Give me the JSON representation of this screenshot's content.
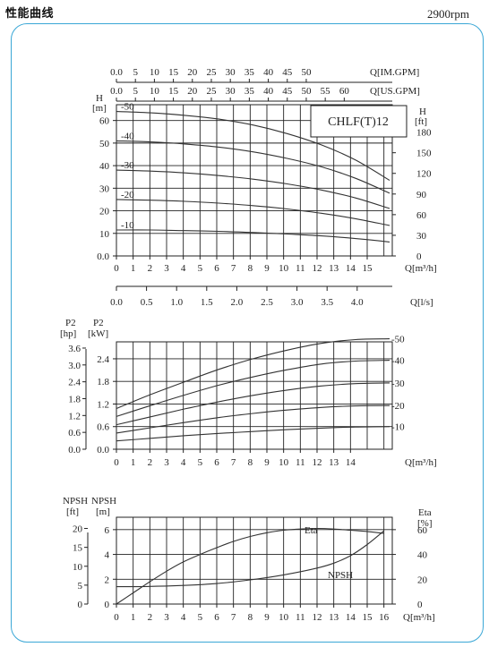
{
  "page": {
    "heading": "性能曲线",
    "speed": "2900rpm"
  },
  "colors": {
    "frame": "#3aa7d6",
    "ink": "#222222",
    "curve": "#333333"
  },
  "chart_data": [
    {
      "id": "head",
      "type": "line",
      "model": "CHLF(T)12",
      "xlabel": "Q[m³/h]",
      "x_ticks": [
        "0",
        "1",
        "2",
        "3",
        "4",
        "5",
        "6",
        "7",
        "8",
        "9",
        "10",
        "11",
        "12",
        "13",
        "14",
        "15"
      ],
      "xlim": [
        0,
        16.5
      ],
      "top_axes": [
        {
          "label": "Q[IM.GPM]",
          "ticks": [
            "0.0",
            "5",
            "10",
            "15",
            "20",
            "25",
            "30",
            "35",
            "40",
            "45",
            "50"
          ]
        },
        {
          "label": "Q[US.GPM]",
          "ticks": [
            "0.0",
            "5",
            "10",
            "15",
            "20",
            "25",
            "30",
            "35",
            "40",
            "45",
            "50",
            "55",
            "60"
          ]
        }
      ],
      "bottom_axis": {
        "label": "Q[l/s]",
        "ticks": [
          "0.0",
          "0.5",
          "1.0",
          "1.5",
          "2.0",
          "2.5",
          "3.0",
          "3.5",
          "4.0"
        ]
      },
      "left_axis": {
        "label": "H",
        "unit": "[m]",
        "ticks": [
          "0.0",
          "10",
          "20",
          "30",
          "40",
          "50",
          "60"
        ],
        "ylim": [
          0,
          67
        ]
      },
      "right_axis": {
        "label": "H",
        "unit": "[ft]",
        "ticks": [
          "0",
          "30",
          "60",
          "90",
          "120",
          "150",
          "180"
        ]
      },
      "series": [
        {
          "name": "10",
          "x": [
            0,
            2,
            4,
            6,
            8,
            10,
            12,
            14,
            16
          ],
          "y": [
            11.5,
            11.5,
            11.2,
            10.9,
            10.4,
            9.7,
            8.9,
            7.7,
            6.2
          ]
        },
        {
          "name": "20",
          "x": [
            0,
            2,
            4,
            6,
            8,
            10,
            12,
            14,
            16
          ],
          "y": [
            25,
            24.7,
            24.2,
            23.4,
            22.3,
            20.8,
            18.9,
            16.5,
            13.5
          ]
        },
        {
          "name": "30",
          "x": [
            0,
            2,
            4,
            6,
            8,
            10,
            12,
            14,
            16
          ],
          "y": [
            38,
            37.6,
            36.8,
            35.6,
            34,
            31.9,
            29.2,
            25.7,
            21
          ]
        },
        {
          "name": "40",
          "x": [
            0,
            2,
            4,
            6,
            8,
            10,
            12,
            14,
            16
          ],
          "y": [
            51,
            50.5,
            49.6,
            48.2,
            46.1,
            43.2,
            39.5,
            34.4,
            27.8
          ]
        },
        {
          "name": "50",
          "x": [
            0,
            2,
            4,
            6,
            8,
            10,
            12,
            14,
            16
          ],
          "y": [
            64,
            63.4,
            62.3,
            60.6,
            58,
            54.2,
            49.2,
            42.5,
            33.5
          ]
        }
      ]
    },
    {
      "id": "power",
      "type": "line",
      "xlabel": "Q[m³/h]",
      "x_ticks": [
        "0",
        "1",
        "2",
        "3",
        "4",
        "5",
        "6",
        "7",
        "8",
        "9",
        "10",
        "11",
        "12",
        "13",
        "14"
      ],
      "xlim": [
        0,
        16.5
      ],
      "left_axis_outer": {
        "label": "P2",
        "unit": "[hp]",
        "ticks": [
          "0.0",
          "0.6",
          "1.2",
          "1.8",
          "2.4",
          "3.0",
          "3.6"
        ]
      },
      "left_axis": {
        "label": "P2",
        "unit": "[kW]",
        "ticks": [
          "0.0",
          "0.6",
          "1.2",
          "1.8",
          "2.4"
        ],
        "ylim": [
          0,
          2.85
        ]
      },
      "series": [
        {
          "name": "10",
          "x": [
            0,
            2,
            4,
            6,
            8,
            10,
            12,
            14,
            16
          ],
          "y": [
            0.22,
            0.29,
            0.36,
            0.42,
            0.47,
            0.52,
            0.56,
            0.59,
            0.6
          ]
        },
        {
          "name": "20",
          "x": [
            0,
            2,
            4,
            6,
            8,
            10,
            12,
            14,
            16
          ],
          "y": [
            0.43,
            0.57,
            0.71,
            0.84,
            0.95,
            1.04,
            1.11,
            1.15,
            1.16
          ]
        },
        {
          "name": "30",
          "x": [
            0,
            2,
            4,
            6,
            8,
            10,
            12,
            14,
            16
          ],
          "y": [
            0.65,
            0.86,
            1.07,
            1.26,
            1.43,
            1.57,
            1.68,
            1.74,
            1.76
          ]
        },
        {
          "name": "40",
          "x": [
            0,
            2,
            4,
            6,
            8,
            10,
            12,
            14,
            16
          ],
          "y": [
            0.87,
            1.16,
            1.44,
            1.7,
            1.92,
            2.11,
            2.26,
            2.34,
            2.36
          ]
        },
        {
          "name": "50",
          "x": [
            0,
            2,
            4,
            6,
            8,
            10,
            12,
            14,
            16
          ],
          "y": [
            1.08,
            1.45,
            1.79,
            2.12,
            2.4,
            2.63,
            2.81,
            2.91,
            2.93
          ]
        }
      ]
    },
    {
      "id": "npsh-eta",
      "type": "line",
      "xlabel": "Q[m³/h]",
      "x_ticks": [
        "0",
        "1",
        "2",
        "3",
        "4",
        "5",
        "6",
        "7",
        "8",
        "9",
        "10",
        "11",
        "12",
        "13",
        "14",
        "15",
        "16"
      ],
      "xlim": [
        0,
        16.5
      ],
      "left_axis_outer": {
        "label": "NPSH",
        "unit": "[ft]",
        "ticks": [
          "0",
          "5",
          "10",
          "15",
          "20"
        ]
      },
      "left_axis": {
        "label": "NPSH",
        "unit": "[m]",
        "ticks": [
          "0",
          "2",
          "4",
          "6"
        ],
        "ylim": [
          0,
          7
        ]
      },
      "right_axis": {
        "label": "Eta",
        "unit": "[%]",
        "ticks": [
          "0",
          "20",
          "40",
          "60"
        ],
        "ylim": [
          0,
          70
        ]
      },
      "series": [
        {
          "name": "Eta",
          "axis": "right",
          "x": [
            0,
            1,
            2,
            3,
            4,
            5,
            6,
            7,
            8,
            9,
            10,
            11,
            12,
            13,
            14,
            15,
            16
          ],
          "y": [
            0,
            9,
            18,
            26.5,
            34,
            40,
            45.5,
            50.5,
            54.5,
            57.5,
            59.5,
            60.5,
            61,
            60.5,
            59.5,
            58.5,
            57
          ]
        },
        {
          "name": "NPSH",
          "axis": "left",
          "x": [
            0,
            2,
            4,
            6,
            8,
            10,
            12,
            13,
            14,
            15,
            16
          ],
          "y": [
            1.4,
            1.42,
            1.5,
            1.65,
            1.95,
            2.35,
            2.9,
            3.3,
            3.9,
            4.8,
            5.9
          ]
        }
      ]
    }
  ]
}
